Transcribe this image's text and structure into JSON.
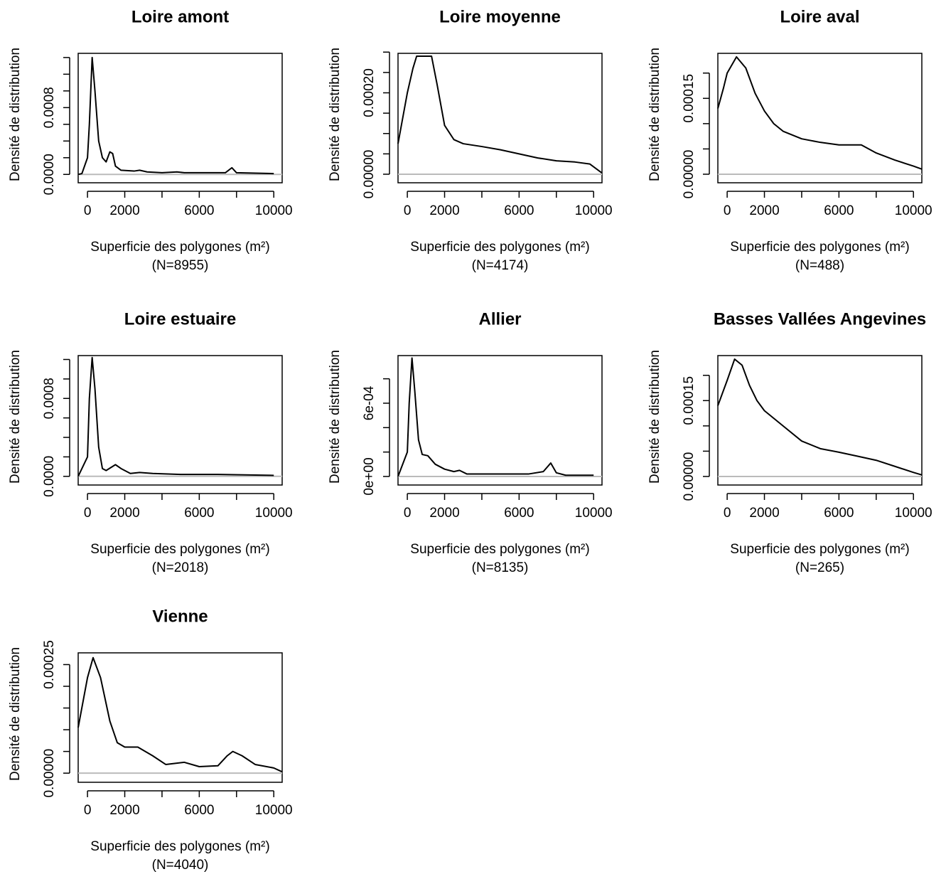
{
  "chart_data": [
    {
      "type": "line",
      "title": "Loire amont",
      "xlabel": "Superficie des polygones (m²)",
      "subtitle": "(N=8955)",
      "ylabel": "Densité de distribution",
      "color": "#000000",
      "zero_line_color": "#bbbbbb",
      "x": [
        -500,
        -300,
        0,
        100,
        250,
        400,
        600,
        800,
        1000,
        1200,
        1350,
        1500,
        1800,
        2500,
        2800,
        3200,
        4000,
        4800,
        5200,
        7400,
        7750,
        8000,
        10000
      ],
      "values": [
        0,
        1e-05,
        0.0002,
        0.0006,
        0.0014,
        0.001,
        0.0004,
        0.0002,
        0.00015,
        0.00027,
        0.00025,
        0.0001,
        5e-05,
        4e-05,
        5e-05,
        3e-05,
        2e-05,
        3e-05,
        2e-05,
        2e-05,
        8e-05,
        2e-05,
        1e-05
      ],
      "xlim": [
        -500,
        10450
      ],
      "ylim": [
        -0.0001,
        0.00145
      ],
      "xticks": [
        0,
        2000,
        6000,
        10000
      ],
      "xticks_minor": [
        4000,
        8000
      ],
      "yticks": [
        {
          "value": 0,
          "label": "0.0000"
        },
        {
          "value": 0.0008,
          "label": "0.0008"
        }
      ],
      "yticks_minor": [
        0.0002,
        0.0004,
        0.0006,
        0.001,
        0.0012,
        0.0014
      ]
    },
    {
      "type": "line",
      "title": "Loire moyenne",
      "xlabel": "Superficie des polygones (m²)",
      "subtitle": "(N=4174)",
      "ylabel": "Densité de distribution",
      "color": "#000000",
      "zero_line_color": "#bbbbbb",
      "x": [
        -500,
        -200,
        0,
        300,
        500,
        1300,
        1600,
        2000,
        2500,
        3000,
        4000,
        5000,
        6000,
        7000,
        8000,
        9000,
        9800,
        10450
      ],
      "values": [
        7.5e-05,
        0.00015,
        0.0002,
        0.00026,
        0.00029,
        0.00029,
        0.00022,
        0.00012,
        8.5e-05,
        7.5e-05,
        6.8e-05,
        6e-05,
        5e-05,
        4e-05,
        3.3e-05,
        3e-05,
        2.5e-05,
        3e-06
      ],
      "xlim": [
        -500,
        10450
      ],
      "ylim": [
        -2.1e-05,
        0.000297
      ],
      "xticks": [
        0,
        2000,
        6000,
        10000
      ],
      "xticks_minor": [
        4000,
        8000
      ],
      "yticks": [
        {
          "value": 0,
          "label": "0.00000"
        },
        {
          "value": 0.0002,
          "label": "0.00020"
        }
      ],
      "yticks_minor": [
        5e-05,
        0.0001,
        0.00015,
        0.00025,
        0.0003
      ]
    },
    {
      "type": "line",
      "title": "Loire aval",
      "xlabel": "Superficie des polygones (m²)",
      "subtitle": "(N=488)",
      "ylabel": "Densité de distribution",
      "color": "#000000",
      "zero_line_color": "#bbbbbb",
      "x": [
        -500,
        -200,
        0,
        500,
        1000,
        1500,
        2000,
        2500,
        3000,
        4000,
        5000,
        6000,
        7200,
        8000,
        9000,
        10000,
        10450
      ],
      "values": [
        0.00013,
        0.00017,
        0.0002,
        0.000232,
        0.00021,
        0.00016,
        0.000125,
        0.0001,
        8.5e-05,
        7e-05,
        6.3e-05,
        5.8e-05,
        5.8e-05,
        4.2e-05,
        2.8e-05,
        1.6e-05,
        1e-05
      ],
      "xlim": [
        -500,
        10450
      ],
      "ylim": [
        -1.69e-05,
        0.000239
      ],
      "xticks": [
        0,
        2000,
        6000,
        10000
      ],
      "xticks_minor": [
        4000,
        8000
      ],
      "yticks": [
        {
          "value": 0,
          "label": "0.00000"
        },
        {
          "value": 0.00015,
          "label": "0.00015"
        }
      ],
      "yticks_minor": [
        5e-05,
        0.0001,
        0.0002
      ]
    },
    {
      "type": "line",
      "title": "Loire estuaire",
      "xlabel": "Superficie des polygones (m²)",
      "subtitle": "(N=2018)",
      "ylabel": "Densité de distribution",
      "color": "#000000",
      "zero_line_color": "#bbbbbb",
      "x": [
        -500,
        0,
        100,
        250,
        400,
        600,
        800,
        1000,
        1500,
        1800,
        2300,
        2800,
        3500,
        5000,
        7000,
        10000
      ],
      "values": [
        0,
        0.0002,
        0.0008,
        0.00122,
        0.0009,
        0.0003,
        8e-05,
        6e-05,
        0.00012,
        8e-05,
        3e-05,
        4e-05,
        3e-05,
        2e-05,
        2e-05,
        1e-05
      ],
      "xlim": [
        -500,
        10450
      ],
      "ylim": [
        -8.9e-05,
        0.00124
      ],
      "xticks": [
        0,
        2000,
        6000,
        10000
      ],
      "xticks_minor": [
        4000,
        8000
      ],
      "yticks": [
        {
          "value": 0,
          "label": "0.0000"
        },
        {
          "value": 0.0008,
          "label": "0.0008"
        }
      ],
      "yticks_minor": [
        0.0002,
        0.0004,
        0.0006,
        0.001,
        0.0012
      ]
    },
    {
      "type": "line",
      "title": "Allier",
      "xlabel": "Superficie des polygones (m²)",
      "subtitle": "(N=8135)",
      "ylabel": "Densité de distribution",
      "color": "#000000",
      "zero_line_color": "#bbbbbb",
      "x": [
        -500,
        0,
        100,
        250,
        400,
        600,
        800,
        1100,
        1500,
        2000,
        2500,
        2800,
        3200,
        4000,
        6500,
        7300,
        7700,
        8000,
        8500,
        10000
      ],
      "values": [
        0,
        0.0002,
        0.0006,
        0.00097,
        0.0007,
        0.0003,
        0.00018,
        0.00017,
        0.0001,
        6e-05,
        4e-05,
        5e-05,
        2e-05,
        2e-05,
        2e-05,
        4e-05,
        0.00011,
        3e-05,
        1e-05,
        1e-05
      ],
      "xlim": [
        -500,
        10450
      ],
      "ylim": [
        -7e-05,
        0.00099
      ],
      "xticks": [
        0,
        2000,
        6000,
        10000
      ],
      "xticks_minor": [
        4000,
        8000
      ],
      "yticks": [
        {
          "value": 0,
          "label": "0e+00"
        },
        {
          "value": 0.0006,
          "label": "6e-04"
        }
      ],
      "yticks_minor": [
        0.0002,
        0.0004,
        0.0008
      ]
    },
    {
      "type": "line",
      "title": "Basses Vallées Angevines",
      "xlabel": "Superficie des polygones (m²)",
      "subtitle": "(N=265)",
      "ylabel": "Densité de distribution",
      "color": "#000000",
      "zero_line_color": "#bbbbbb",
      "x": [
        -500,
        0,
        400,
        800,
        1200,
        1600,
        2000,
        3000,
        4000,
        5000,
        6000,
        7000,
        8000,
        9000,
        10000,
        10450
      ],
      "values": [
        0.00014,
        0.00019,
        0.000232,
        0.00022,
        0.00018,
        0.00015,
        0.00013,
        0.0001,
        7e-05,
        5.5e-05,
        4.8e-05,
        4e-05,
        3.2e-05,
        2e-05,
        8e-06,
        3e-06
      ],
      "xlim": [
        -500,
        10450
      ],
      "ylim": [
        -1.69e-05,
        0.000239
      ],
      "xticks": [
        0,
        2000,
        6000,
        10000
      ],
      "xticks_minor": [
        4000,
        8000
      ],
      "yticks": [
        {
          "value": 0,
          "label": "0.00000"
        },
        {
          "value": 0.00015,
          "label": "0.00015"
        }
      ],
      "yticks_minor": [
        5e-05,
        0.0001,
        0.0002
      ]
    },
    {
      "type": "line",
      "title": "Vienne",
      "xlabel": "Superficie des polygones (m²)",
      "subtitle": "(N=4040)",
      "ylabel": "Densité de distribution",
      "color": "#000000",
      "zero_line_color": "#bbbbbb",
      "x": [
        -500,
        0,
        300,
        700,
        1200,
        1600,
        2000,
        2700,
        3500,
        4200,
        5200,
        6000,
        7000,
        7500,
        7800,
        8300,
        9000,
        10000,
        10450
      ],
      "values": [
        0.000105,
        0.00022,
        0.000266,
        0.00022,
        0.00012,
        7e-05,
        6e-05,
        6e-05,
        4e-05,
        2e-05,
        2.5e-05,
        1.5e-05,
        1.7e-05,
        4e-05,
        5e-05,
        4e-05,
        2e-05,
        1.2e-05,
        3e-06
      ],
      "xlim": [
        -500,
        10450
      ],
      "ylim": [
        -2.1e-05,
        0.000277
      ],
      "xticks": [
        0,
        2000,
        6000,
        10000
      ],
      "xticks_minor": [
        4000,
        8000
      ],
      "yticks": [
        {
          "value": 0,
          "label": "0.00000"
        },
        {
          "value": 0.00025,
          "label": "0.00025"
        }
      ],
      "yticks_minor": [
        5e-05,
        0.0001,
        0.00015,
        0.0002
      ]
    }
  ]
}
